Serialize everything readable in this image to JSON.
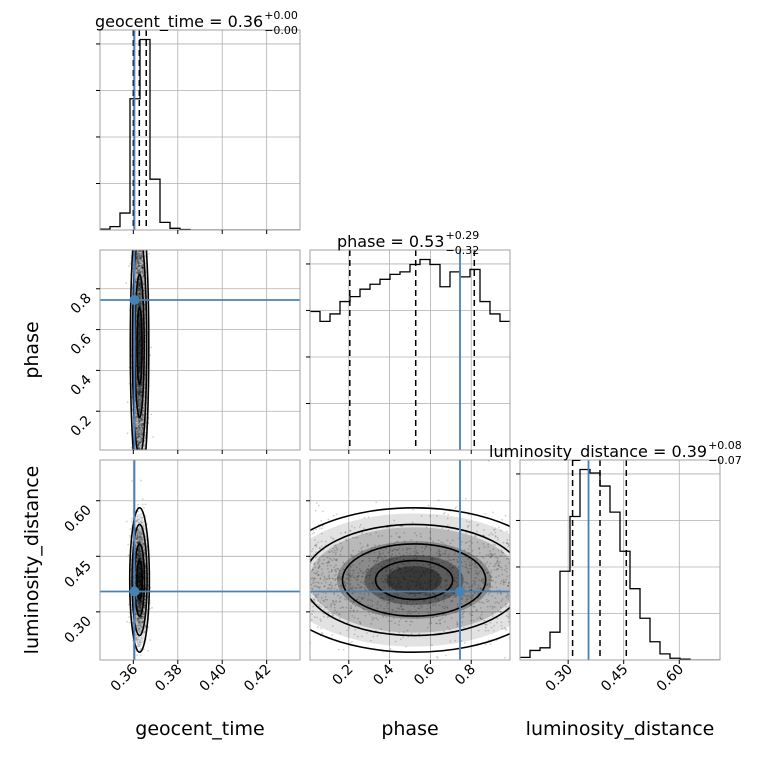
{
  "chart_data": {
    "type": "corner",
    "parameters": [
      "geocent_time",
      "phase",
      "luminosity_distance"
    ],
    "axis_labels": {
      "x": [
        "geocent_time",
        "phase",
        "luminosity_distance"
      ],
      "y": [
        "phase",
        "luminosity_distance"
      ]
    },
    "ranges": {
      "geocent_time": [
        0.345,
        0.435
      ],
      "phase": [
        0.01,
        0.99
      ],
      "luminosity_distance": [
        0.17,
        0.71
      ]
    },
    "ticks": {
      "geocent_time": [
        0.36,
        0.38,
        0.4,
        0.42
      ],
      "phase": [
        0.2,
        0.4,
        0.6,
        0.8
      ],
      "luminosity_distance": [
        0.3,
        0.45,
        0.6
      ]
    },
    "tick_labels": {
      "geocent_time": [
        "0.36",
        "0.38",
        "0.40",
        "0.42"
      ],
      "phase": [
        "0.2",
        "0.4",
        "0.6",
        "0.8"
      ],
      "luminosity_distance": [
        "0.30",
        "0.45",
        "0.60"
      ]
    },
    "titles": [
      {
        "param": "geocent_time",
        "main": "geocent_time = 0.36",
        "plus": "+0.00",
        "minus": "−0.00"
      },
      {
        "param": "phase",
        "main": "phase = 0.53",
        "plus": "+0.29",
        "minus": "−0.32"
      },
      {
        "param": "luminosity_distance",
        "main": "luminosity_distance = 0.39",
        "plus": "+0.08",
        "minus": "−0.07"
      }
    ],
    "truths": {
      "geocent_time": 0.3605,
      "phase": 0.745,
      "luminosity_distance": 0.355
    },
    "quantiles": {
      "geocent_time": [
        0.36,
        0.3627,
        0.3658
      ],
      "phase": [
        0.205,
        0.528,
        0.815
      ],
      "luminosity_distance": [
        0.312,
        0.386,
        0.457
      ]
    },
    "histograms": {
      "geocent_time": {
        "edges": [
          0.345,
          0.3495,
          0.354,
          0.3585,
          0.363,
          0.3675,
          0.372,
          0.3765,
          0.381,
          0.3855,
          0.39,
          0.3945,
          0.399,
          0.4035,
          0.408,
          0.4125,
          0.417,
          0.4215,
          0.426,
          0.4305,
          0.435
        ],
        "counts": [
          2,
          8,
          40,
          310,
          450,
          120,
          18,
          4,
          1,
          0,
          0,
          0,
          0,
          0,
          0,
          0,
          0,
          0,
          0,
          0
        ]
      },
      "phase": {
        "edges": [
          0.01,
          0.059,
          0.108,
          0.157,
          0.206,
          0.255,
          0.304,
          0.353,
          0.402,
          0.451,
          0.5,
          0.549,
          0.598,
          0.647,
          0.696,
          0.745,
          0.794,
          0.843,
          0.892,
          0.941,
          0.99
        ],
        "counts": [
          56,
          52,
          55,
          60,
          62,
          65,
          67,
          69,
          71,
          72,
          75,
          77,
          75,
          66,
          72,
          70,
          73,
          60,
          55,
          52
        ]
      },
      "luminosity_distance": {
        "edges": [
          0.17,
          0.197,
          0.224,
          0.251,
          0.278,
          0.305,
          0.332,
          0.359,
          0.386,
          0.413,
          0.44,
          0.467,
          0.494,
          0.521,
          0.548,
          0.575,
          0.602,
          0.629,
          0.656,
          0.683,
          0.71
        ],
        "counts": [
          3,
          11,
          14,
          32,
          102,
          165,
          219,
          215,
          200,
          170,
          125,
          82,
          48,
          21,
          7,
          2,
          1,
          0,
          0,
          0
        ]
      }
    },
    "contours_2d": [
      {
        "x": "geocent_time",
        "y": "phase",
        "cx": 0.3628,
        "cy": 0.52,
        "sx": 0.0016,
        "sy": 0.27
      },
      {
        "x": "geocent_time",
        "y": "luminosity_distance",
        "cx": 0.3628,
        "cy": 0.386,
        "sx": 0.0017,
        "sy": 0.075
      },
      {
        "x": "phase",
        "y": "luminosity_distance",
        "cx": 0.52,
        "cy": 0.386,
        "sx": 0.27,
        "sy": 0.075
      }
    ]
  }
}
